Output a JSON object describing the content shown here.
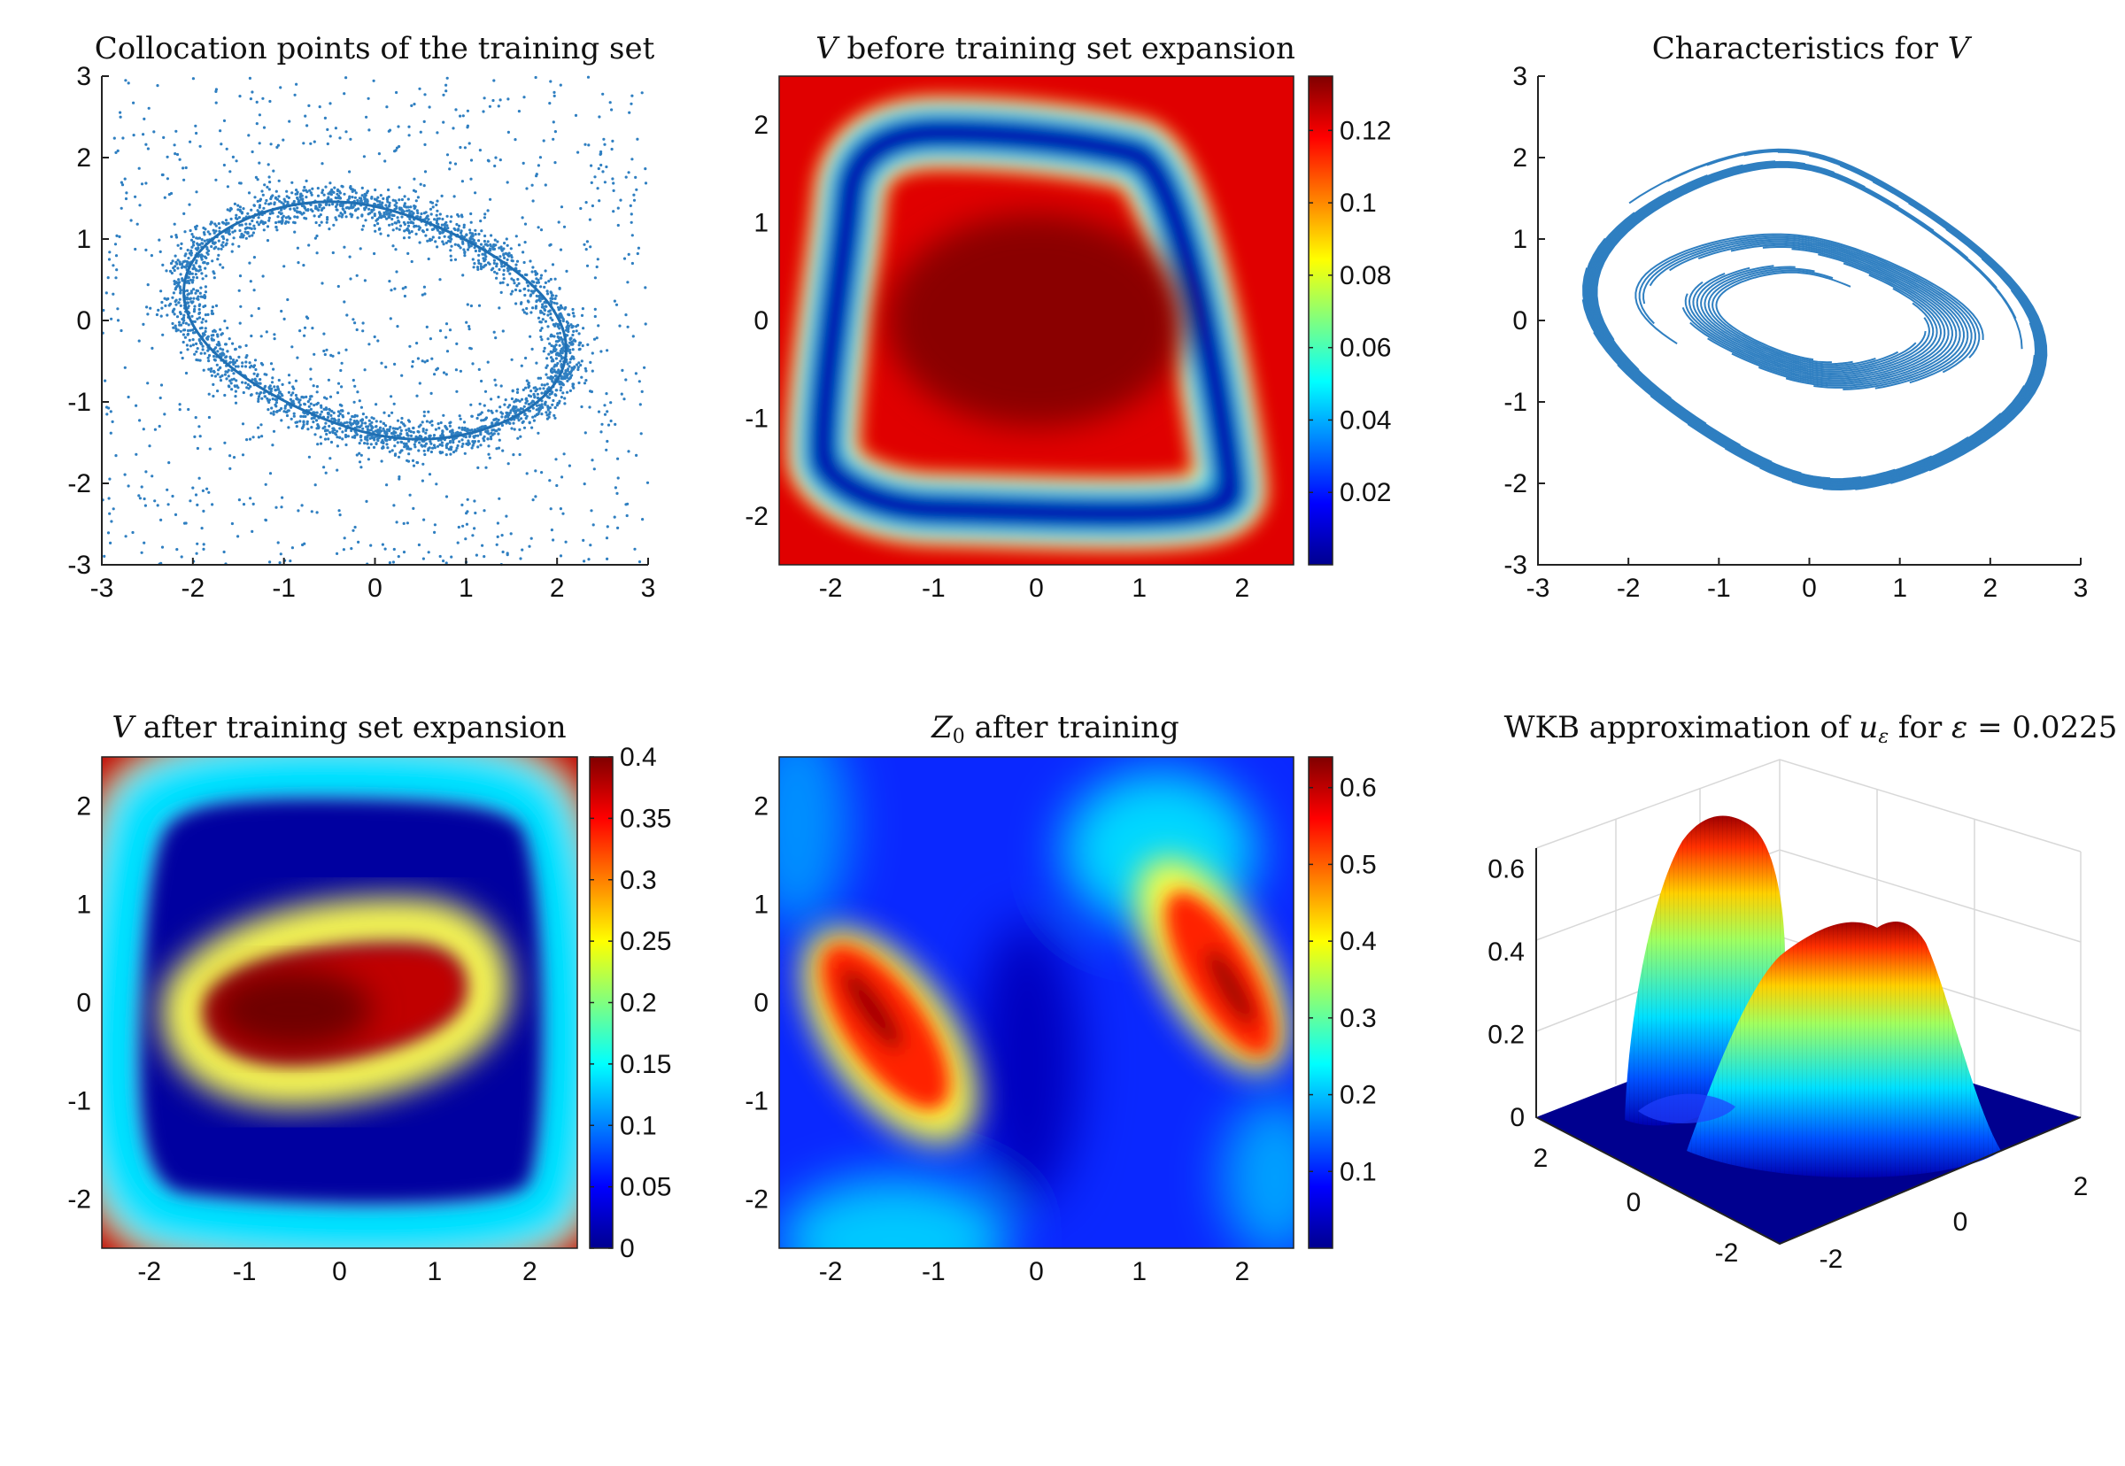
{
  "figure": {
    "panels": [
      {
        "title": "Collocation points of the training set"
      },
      {
        "title": "V before training set expansion"
      },
      {
        "title": "Characteristics for V"
      },
      {
        "title": "V after training set expansion"
      },
      {
        "title": "Z0 after training"
      },
      {
        "title": "WKB approximation of uε for ε = 0.0225"
      }
    ]
  },
  "colors": {
    "scatter": "#2f7fc1",
    "axis": "#222222",
    "jet": [
      "#00008f",
      "#0000ff",
      "#00ffff",
      "#ffff00",
      "#ff0000",
      "#800000"
    ]
  },
  "chart_data": [
    {
      "type": "scatter",
      "title": "Collocation points of the training set",
      "xlim": [
        -3,
        3
      ],
      "ylim": [
        -3,
        3
      ],
      "xticks": [
        "-3",
        "-2",
        "-1",
        "0",
        "1",
        "2",
        "3"
      ],
      "yticks": [
        "-3",
        "-2",
        "-1",
        "0",
        "1",
        "2",
        "3"
      ],
      "orbit": {
        "description": "closed curve (limit cycle)",
        "x_range": [
          -2.1,
          2.1
        ],
        "y_range": [
          -1.6,
          1.6
        ]
      },
      "points": {
        "uniform_count": 1000,
        "near_orbit_count": 2500
      },
      "grid": false
    },
    {
      "type": "heatmap",
      "title": "V before training set expansion",
      "xlim": [
        -2.5,
        2.5
      ],
      "ylim": [
        -2.5,
        2.5
      ],
      "xticks": [
        "-2",
        "-1",
        "0",
        "1",
        "2"
      ],
      "yticks": [
        "-2",
        "-1",
        "0",
        "1",
        "2"
      ],
      "colorbar": {
        "range": [
          0,
          0.135
        ],
        "ticks": [
          "0.02",
          "0.04",
          "0.06",
          "0.08",
          "0.1",
          "0.12"
        ]
      },
      "colormap": "jet"
    },
    {
      "type": "line",
      "title": "Characteristics for V",
      "xlim": [
        -3,
        3
      ],
      "ylim": [
        -3,
        3
      ],
      "xticks": [
        "-3",
        "-2",
        "-1",
        "0",
        "1",
        "2",
        "3"
      ],
      "yticks": [
        "-3",
        "-2",
        "-1",
        "0",
        "1",
        "2",
        "3"
      ],
      "series": [
        {
          "description": "inner characteristics",
          "count": 22
        },
        {
          "description": "outer characteristics",
          "count": 28
        }
      ]
    },
    {
      "type": "heatmap",
      "title": "V after training set expansion",
      "xlim": [
        -2.5,
        2.5
      ],
      "ylim": [
        -2.5,
        2.5
      ],
      "xticks": [
        "-2",
        "-1",
        "0",
        "1",
        "2"
      ],
      "yticks": [
        "-2",
        "-1",
        "0",
        "1",
        "2"
      ],
      "colorbar": {
        "range": [
          0,
          0.4
        ],
        "ticks": [
          "0",
          "0.05",
          "0.1",
          "0.15",
          "0.2",
          "0.25",
          "0.3",
          "0.35",
          "0.4"
        ]
      },
      "colormap": "jet"
    },
    {
      "type": "heatmap",
      "title": "Z0 after training",
      "xlim": [
        -2.5,
        2.5
      ],
      "ylim": [
        -2.5,
        2.5
      ],
      "xticks": [
        "-2",
        "-1",
        "0",
        "1",
        "2"
      ],
      "yticks": [
        "-2",
        "-1",
        "0",
        "1",
        "2"
      ],
      "colorbar": {
        "range": [
          0,
          0.64
        ],
        "ticks": [
          "0.1",
          "0.2",
          "0.3",
          "0.4",
          "0.5",
          "0.6"
        ]
      },
      "colormap": "jet"
    },
    {
      "type": "surface",
      "title": "WKB approximation of uε for ε = 0.0225",
      "zlim": [
        0,
        0.65
      ],
      "zticks": [
        "0",
        "0.2",
        "0.4",
        "0.6"
      ],
      "xticks": [
        "-2",
        "0",
        "2"
      ],
      "yticks": [
        "2",
        "0",
        "-2"
      ],
      "colormap": "jet"
    }
  ]
}
